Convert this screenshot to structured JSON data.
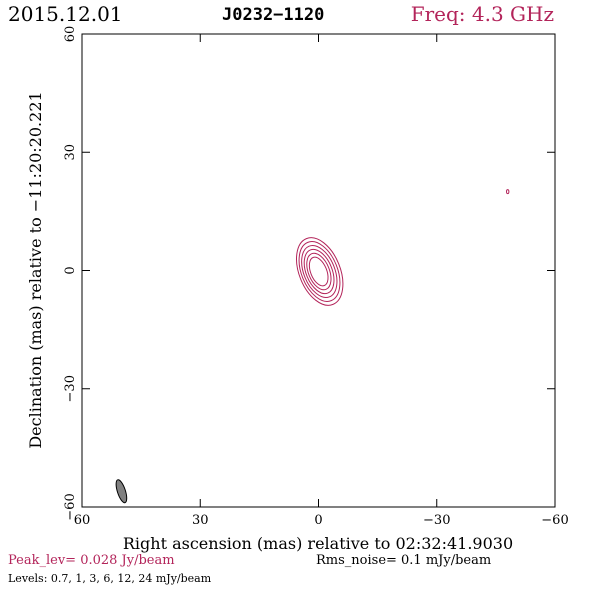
{
  "header": {
    "date": "2015.12.01",
    "source": "J0232−1120",
    "freq": "Freq: 4.3 GHz"
  },
  "chart_data": {
    "type": "contour",
    "xlabel": "Right ascension (mas) relative to 02:32:41.9030",
    "ylabel": "Declination (mas) relative to −11:20:20.221",
    "xlim": [
      60,
      -60
    ],
    "ylim": [
      -60,
      60
    ],
    "xticks": [
      60,
      30,
      0,
      -30,
      -60
    ],
    "yticks": [
      60,
      30,
      0,
      -30,
      -60
    ],
    "xtick_labels": [
      "60",
      "30",
      "0",
      "−30",
      "−60"
    ],
    "ytick_labels": [
      "60",
      "30",
      "0",
      "−30",
      "−60"
    ],
    "contour_levels_mjy": [
      0.7,
      1,
      3,
      6,
      12,
      24
    ],
    "peak_level": "Peak_lev=  0.028 Jy/beam",
    "rms_noise": "Rms_noise=  0.1 mJy/beam",
    "levels_text": "Levels: 0.7,    1,    3,    6,   12,   24  mJy/beam",
    "core": {
      "ra": 0,
      "dec": 0
    },
    "secondary_component": {
      "ra": -48,
      "dec": 20
    },
    "beam": {
      "ra": 50,
      "dec": -56
    },
    "contour_color": "#b3245a",
    "beam_color": "#808080"
  }
}
